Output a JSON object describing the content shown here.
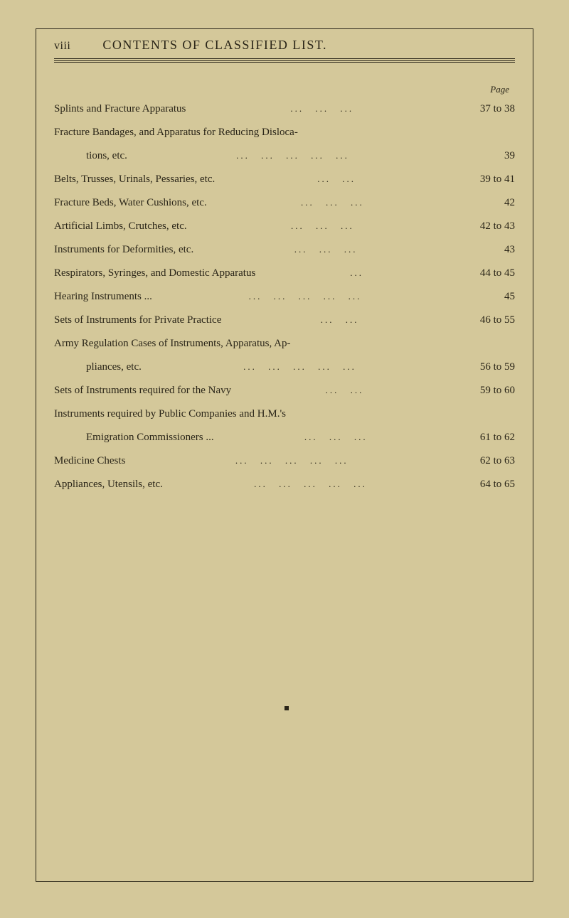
{
  "header": {
    "roman": "viii",
    "title": "CONTENTS OF CLASSIFIED LIST."
  },
  "pageLabel": "Page",
  "entries": [
    {
      "text": "Splints and Fracture Apparatus",
      "page": "37 to 38",
      "type": "simple",
      "dots": "three"
    },
    {
      "text": "Fracture Bandages, and Apparatus for Reducing Disloca-",
      "page": "",
      "type": "continuation-start"
    },
    {
      "text": "tions, etc.",
      "page": "39",
      "type": "indent",
      "dots": "long"
    },
    {
      "text": "Belts, Trusses, Urinals, Pessaries, etc.",
      "page": "39 to 41",
      "type": "simple",
      "dots": "short"
    },
    {
      "text": "Fracture Beds, Water Cushions, etc.",
      "page": "42",
      "type": "simple",
      "dots": "three"
    },
    {
      "text": "Artificial Limbs, Crutches, etc.",
      "page": "42 to 43",
      "type": "simple",
      "dots": "three"
    },
    {
      "text": "Instruments for Deformities, etc.",
      "page": "43",
      "type": "simple",
      "dots": "three"
    },
    {
      "text": "Respirators, Syringes, and Domestic Apparatus",
      "page": "44 to 45",
      "type": "simple",
      "dots": "short-one"
    },
    {
      "text": "Hearing Instruments ...",
      "page": "45",
      "type": "simple",
      "dots": "long"
    },
    {
      "text": "Sets of Instruments for Private Practice",
      "page": "46 to 55",
      "type": "simple",
      "dots": "short"
    },
    {
      "text": "Army Regulation Cases of Instruments, Apparatus, Ap-",
      "page": "",
      "type": "continuation-start"
    },
    {
      "text": "pliances, etc.",
      "page": "56 to 59",
      "type": "indent",
      "dots": "long-dotted"
    },
    {
      "text": "Sets of Instruments required for the Navy",
      "page": "59 to 60",
      "type": "simple",
      "dots": "short"
    },
    {
      "text": "Instruments required by Public Companies and H.M.'s",
      "page": "",
      "type": "continuation-start"
    },
    {
      "text": "Emigration Commissioners ...",
      "page": "61 to 62",
      "type": "indent",
      "dots": "three"
    },
    {
      "text": "Medicine Chests",
      "page": "62 to 63",
      "type": "simple",
      "dots": "long"
    },
    {
      "text": "Appliances, Utensils, etc.",
      "page": "64 to 65",
      "type": "simple",
      "dots": "long"
    }
  ],
  "colors": {
    "paper": "#d4c89a",
    "ink": "#2a2518"
  },
  "typography": {
    "titleSize": 18,
    "bodySize": 15,
    "fontFamily": "Georgia, Times New Roman, serif"
  }
}
